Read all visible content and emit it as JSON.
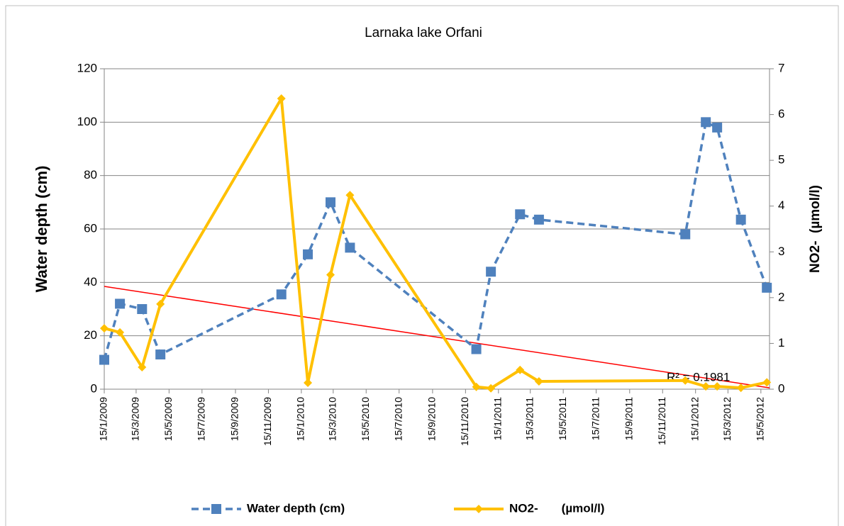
{
  "chart_data": {
    "type": "line",
    "title": "Larnaka lake Orfani",
    "ylabel": "Water depth (cm)",
    "y2label": "NO2-  (µmol/l)",
    "xlim": [
      "2009-01-15",
      "2012-05-31"
    ],
    "xticks": [
      {
        "value": "2009-01-15",
        "label": "15/1/2009"
      },
      {
        "value": "2009-03-15",
        "label": "15/3/2009"
      },
      {
        "value": "2009-05-15",
        "label": "15/5/2009"
      },
      {
        "value": "2009-07-15",
        "label": "15/7/2009"
      },
      {
        "value": "2009-09-15",
        "label": "15/9/2009"
      },
      {
        "value": "2009-11-15",
        "label": "15/11/2009"
      },
      {
        "value": "2010-01-15",
        "label": "15/1/2010"
      },
      {
        "value": "2010-03-15",
        "label": "15/3/2010"
      },
      {
        "value": "2010-05-15",
        "label": "15/5/2010"
      },
      {
        "value": "2010-07-15",
        "label": "15/7/2010"
      },
      {
        "value": "2010-09-15",
        "label": "15/9/2010"
      },
      {
        "value": "2010-11-15",
        "label": "15/11/2010"
      },
      {
        "value": "2011-01-15",
        "label": "15/1/2011"
      },
      {
        "value": "2011-03-15",
        "label": "15/3/2011"
      },
      {
        "value": "2011-05-15",
        "label": "15/5/2011"
      },
      {
        "value": "2011-07-15",
        "label": "15/7/2011"
      },
      {
        "value": "2011-09-15",
        "label": "15/9/2011"
      },
      {
        "value": "2011-11-15",
        "label": "15/11/2011"
      },
      {
        "value": "2012-01-15",
        "label": "15/1/2012"
      },
      {
        "value": "2012-03-15",
        "label": "15/3/2012"
      },
      {
        "value": "2012-05-15",
        "label": "15/5/2012"
      }
    ],
    "ylim": [
      0,
      120
    ],
    "yticks": [
      0,
      20,
      40,
      60,
      80,
      100,
      120
    ],
    "y2lim": [
      0,
      7
    ],
    "y2ticks": [
      0,
      1,
      2,
      3,
      4,
      5,
      6,
      7
    ],
    "grid": true,
    "legend": "bottom",
    "x": [
      "2009-01-15",
      "2009-02-13",
      "2009-03-26",
      "2009-04-29",
      "2009-12-09",
      "2010-01-27",
      "2010-03-10",
      "2010-04-15",
      "2010-12-05",
      "2011-01-01",
      "2011-02-24",
      "2011-03-31",
      "2011-12-27",
      "2012-02-03",
      "2012-02-24",
      "2012-04-08",
      "2012-05-26"
    ],
    "series": [
      {
        "name": "Water depth (cm)",
        "color": "#4f81bd",
        "marker": "square",
        "dashed": true,
        "values": [
          11,
          32,
          30,
          13,
          35.5,
          50.5,
          70,
          53,
          15,
          44,
          65.5,
          63.5,
          58,
          100,
          98,
          63.5,
          38
        ]
      },
      {
        "name": "NO2-       (µmol/l)",
        "color": "#ffc000",
        "marker": "diamond",
        "axis": "y2",
        "values": [
          1.33,
          1.24,
          0.48,
          1.86,
          6.35,
          0.14,
          2.5,
          4.24,
          0.05,
          0.02,
          0.42,
          0.17,
          0.19,
          0.06,
          0.06,
          0.03,
          0.15
        ]
      }
    ],
    "trendline": {
      "color": "#ff0000",
      "x": [
        "2009-01-15",
        "2012-05-31"
      ],
      "values": [
        38.5,
        0.5
      ],
      "label": "R² = 0.1981"
    }
  }
}
